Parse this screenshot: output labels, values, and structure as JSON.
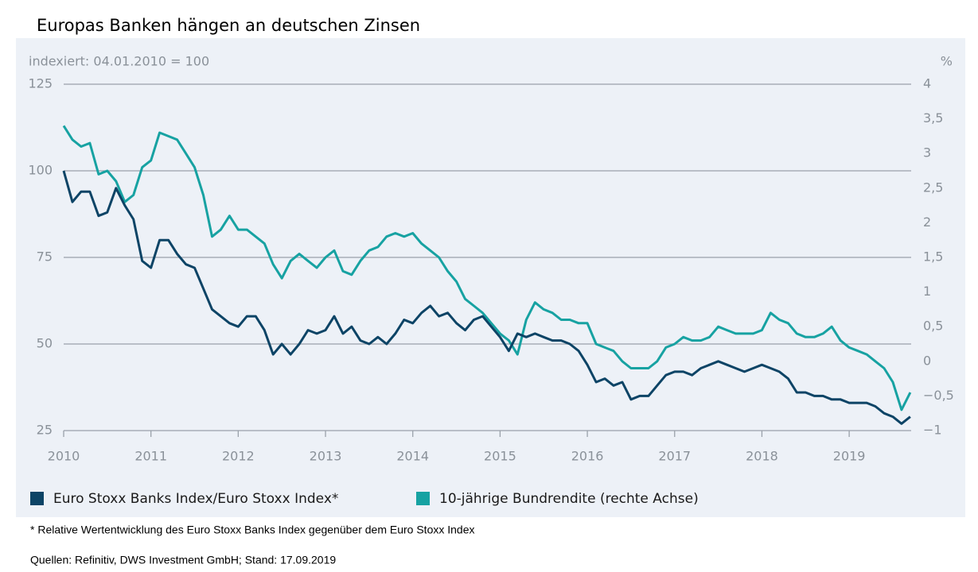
{
  "chart_data": {
    "type": "line",
    "title": "Europas Banken hängen an deutschen Zinsen",
    "y_label": "indexiert: 04.01.2010 = 100",
    "y2_label": "%",
    "footnote": "* Relative Wertentwicklung des Euro Stoxx Banks Index gegenüber dem Euro Stoxx Index",
    "source": "Quellen: Refinitiv, DWS Investment GmbH; Stand: 17.09.2019",
    "x": [
      2010,
      2010.1,
      2010.2,
      2010.3,
      2010.4,
      2010.5,
      2010.6,
      2010.7,
      2010.8,
      2010.9,
      2011,
      2011.1,
      2011.2,
      2011.3,
      2011.4,
      2011.5,
      2011.6,
      2011.7,
      2011.8,
      2011.9,
      2012,
      2012.1,
      2012.2,
      2012.3,
      2012.4,
      2012.5,
      2012.6,
      2012.7,
      2012.8,
      2012.9,
      2013,
      2013.1,
      2013.2,
      2013.3,
      2013.4,
      2013.5,
      2013.6,
      2013.7,
      2013.8,
      2013.9,
      2014,
      2014.1,
      2014.2,
      2014.3,
      2014.4,
      2014.5,
      2014.6,
      2014.7,
      2014.8,
      2014.9,
      2015,
      2015.1,
      2015.2,
      2015.3,
      2015.4,
      2015.5,
      2015.6,
      2015.7,
      2015.8,
      2015.9,
      2016,
      2016.1,
      2016.2,
      2016.3,
      2016.4,
      2016.5,
      2016.6,
      2016.7,
      2016.8,
      2016.9,
      2017,
      2017.1,
      2017.2,
      2017.3,
      2017.4,
      2017.5,
      2017.6,
      2017.7,
      2017.8,
      2017.9,
      2018,
      2018.1,
      2018.2,
      2018.3,
      2018.4,
      2018.5,
      2018.6,
      2018.7,
      2018.8,
      2018.9,
      2019,
      2019.1,
      2019.2,
      2019.3,
      2019.4,
      2019.5,
      2019.6,
      2019.7
    ],
    "series": [
      {
        "name": "Euro Stoxx Banks Index/Euro Stoxx Index*",
        "color": "#0d4466",
        "axis": "y",
        "values": [
          100,
          91,
          94,
          94,
          87,
          88,
          95,
          90,
          86,
          74,
          72,
          80,
          80,
          76,
          73,
          72,
          66,
          60,
          58,
          56,
          55,
          58,
          58,
          54,
          47,
          50,
          47,
          50,
          54,
          53,
          54,
          58,
          53,
          55,
          51,
          50,
          52,
          50,
          53,
          57,
          56,
          59,
          61,
          58,
          59,
          56,
          54,
          57,
          58,
          55,
          52,
          48,
          53,
          52,
          53,
          52,
          51,
          51,
          50,
          48,
          44,
          39,
          40,
          38,
          39,
          34,
          35,
          35,
          38,
          41,
          42,
          42,
          41,
          43,
          44,
          45,
          44,
          43,
          42,
          43,
          44,
          43,
          42,
          40,
          36,
          36,
          35,
          35,
          34,
          34,
          33,
          33,
          33,
          32,
          30,
          29,
          27,
          29
        ]
      },
      {
        "name": "10-jährige Bundrendite (rechte Achse)",
        "color": "#17a2a2",
        "axis": "y2",
        "values": [
          3.4,
          3.2,
          3.1,
          3.15,
          2.7,
          2.75,
          2.6,
          2.3,
          2.4,
          2.8,
          2.9,
          3.3,
          3.25,
          3.2,
          3.0,
          2.8,
          2.4,
          1.8,
          1.9,
          2.1,
          1.9,
          1.9,
          1.8,
          1.7,
          1.4,
          1.2,
          1.45,
          1.55,
          1.45,
          1.35,
          1.5,
          1.6,
          1.3,
          1.25,
          1.45,
          1.6,
          1.65,
          1.8,
          1.85,
          1.8,
          1.85,
          1.7,
          1.6,
          1.5,
          1.3,
          1.15,
          0.9,
          0.8,
          0.7,
          0.55,
          0.4,
          0.3,
          0.1,
          0.6,
          0.85,
          0.75,
          0.7,
          0.6,
          0.6,
          0.55,
          0.55,
          0.25,
          0.2,
          0.15,
          0,
          -0.1,
          -0.1,
          -0.1,
          0,
          0.2,
          0.25,
          0.35,
          0.3,
          0.3,
          0.35,
          0.5,
          0.45,
          0.4,
          0.4,
          0.4,
          0.45,
          0.7,
          0.6,
          0.55,
          0.4,
          0.35,
          0.35,
          0.4,
          0.5,
          0.3,
          0.2,
          0.15,
          0.1,
          0,
          -0.1,
          -0.3,
          -0.7,
          -0.45
        ]
      }
    ],
    "xlim": [
      2010,
      2019.71
    ],
    "xticks": [
      2010,
      2011,
      2012,
      2013,
      2014,
      2015,
      2016,
      2017,
      2018,
      2019
    ],
    "ylim": [
      25,
      125
    ],
    "yticks": [
      25,
      50,
      75,
      100,
      125
    ],
    "y2lim": [
      -1,
      4
    ],
    "y2ticks": [
      {
        "value": -1,
        "label": "−1"
      },
      {
        "value": -0.5,
        "label": "−0,5"
      },
      0,
      {
        "value": 0.5,
        "label": "0,5"
      },
      1,
      {
        "value": 1.5,
        "label": "1,5"
      },
      2,
      {
        "value": 2.5,
        "label": "2,5"
      },
      3,
      {
        "value": 3.5,
        "label": "3,5"
      },
      4
    ],
    "grid": true,
    "legend": "bottom"
  }
}
